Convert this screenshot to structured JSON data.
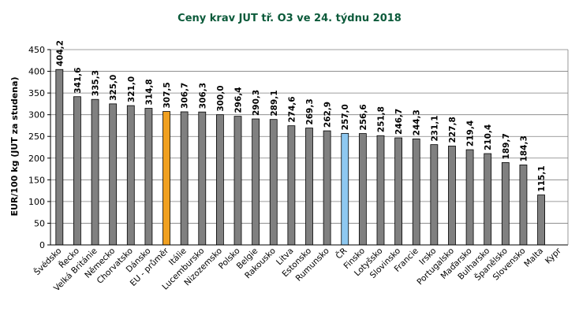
{
  "chart_data": {
    "type": "bar",
    "title": "Ceny krav JUT  tř. O3  ve 24. týdnu 2018",
    "ylabel": "EUR/100 kg (JUT za studena)",
    "xlabel": "",
    "ylim": [
      0,
      450
    ],
    "ytick_step": 50,
    "yticks": [
      "0",
      "50",
      "100",
      "150",
      "200",
      "250",
      "300",
      "350",
      "400",
      "450"
    ],
    "grid": true,
    "legend": "none",
    "categories": [
      "Švédsko",
      "Řecko",
      "Velká Británie",
      "Německo",
      "Chorvatsko",
      "Dánsko",
      "EU - průměr",
      "Itálie",
      "Lucembursko",
      "Nizozemsko",
      "Polsko",
      "Belgie",
      "Rakousko",
      "Litva",
      "Estonsko",
      "Rumunsko",
      "ČR",
      "Finsko",
      "Lotyšsko",
      "Slovinsko",
      "Francie",
      "Irsko",
      "Portugalsko",
      "Maďarsko",
      "Bulharsko",
      "Španělsko",
      "Slovensko",
      "Malta",
      "Kypr"
    ],
    "values": [
      404.2,
      341.6,
      335.3,
      325.0,
      321.0,
      314.8,
      307.5,
      306.7,
      306.3,
      300.0,
      296.4,
      290.3,
      289.1,
      274.6,
      269.3,
      262.9,
      257.0,
      256.6,
      251.8,
      246.7,
      244.3,
      231.1,
      227.8,
      219.4,
      210.4,
      189.7,
      184.3,
      115.1,
      null
    ],
    "value_labels": [
      "404,2",
      "341,6",
      "335,3",
      "325,0",
      "321,0",
      "314,8",
      "307,5",
      "306,7",
      "306,3",
      "300,0",
      "296,4",
      "290,3",
      "289,1",
      "274,6",
      "269,3",
      "262,9",
      "257,0",
      "256,6",
      "251,8",
      "246,7",
      "244,3",
      "231,1",
      "227,8",
      "219,4",
      "210,4",
      "189,7",
      "184,3",
      "115,1",
      ""
    ],
    "colors": {
      "default": "#808080",
      "highlight_eu": "#f0a020",
      "highlight_cz": "#8ec8f0",
      "title": "#0b5a3a",
      "plot_bg": "#ffffff",
      "grid": "#7f7f7f"
    },
    "highlight": {
      "EU - průměr": "highlight_eu",
      "ČR": "highlight_cz"
    }
  }
}
